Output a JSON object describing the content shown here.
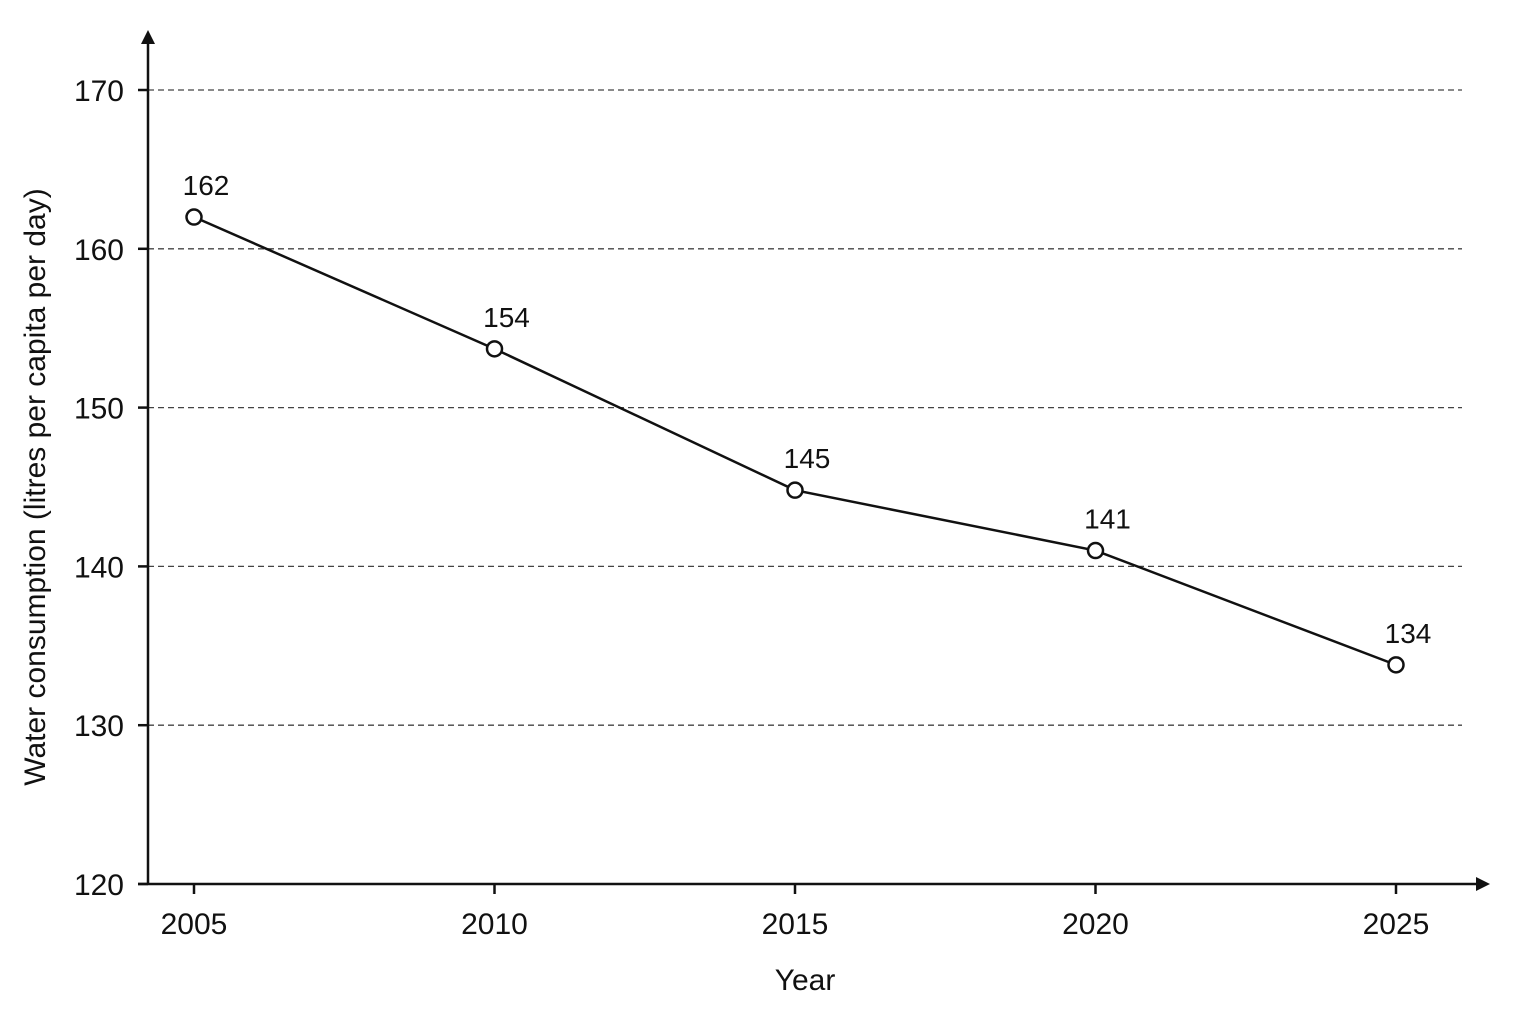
{
  "chart_data": {
    "type": "line",
    "title": "",
    "xlabel": "Year",
    "ylabel": "Water consumption (litres per capita per day)",
    "x": [
      2005,
      2010,
      2015,
      2020,
      2025
    ],
    "x_tick_labels": [
      "2005",
      "2010",
      "2015",
      "2020",
      "2025"
    ],
    "y_ticks": [
      120,
      130,
      140,
      150,
      160,
      170
    ],
    "y_tick_labels": [
      "120",
      "130",
      "140",
      "150",
      "160",
      "170"
    ],
    "ylim": [
      120,
      170
    ],
    "grid": "horizontal dashed",
    "legend": "none",
    "series": [
      {
        "values": [
          162,
          153.7,
          144.8,
          141,
          133.8
        ],
        "data_labels": [
          "162",
          "154",
          "145",
          "141",
          "134"
        ],
        "marker": "open-circle",
        "color": "#111111"
      }
    ]
  }
}
